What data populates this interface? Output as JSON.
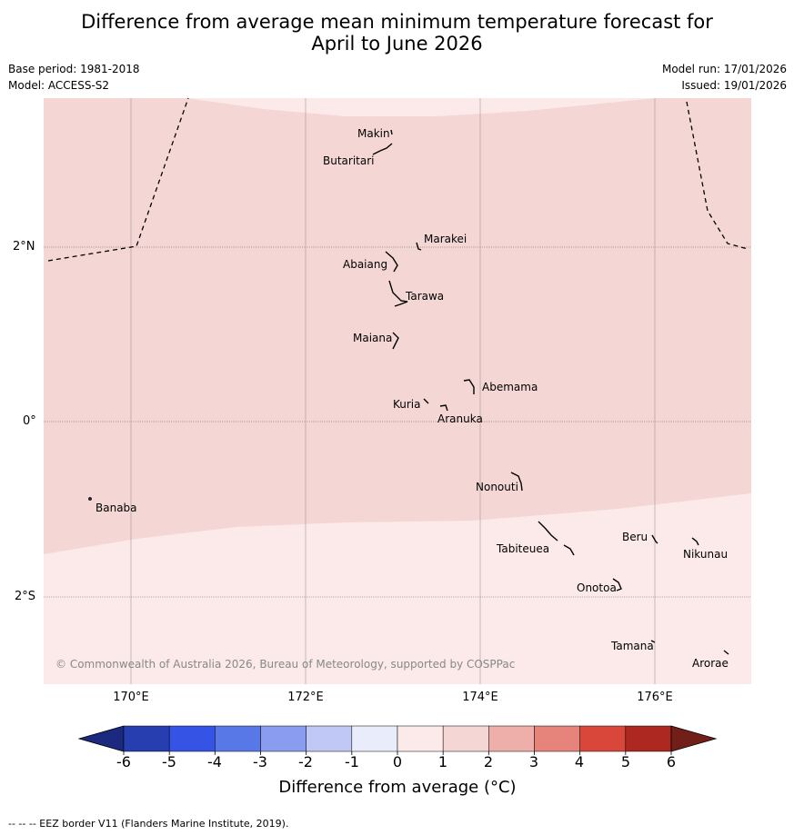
{
  "title_line1": "Difference from average mean minimum temperature forecast for",
  "title_line2": "April to June 2026",
  "base_period": "Base period: 1981-2018",
  "model": "Model: ACCESS-S2",
  "model_run": "Model run: 17/01/2026",
  "issued": "Issued: 19/01/2026",
  "latitude_labels": [
    "2°N",
    "0°",
    "2°S"
  ],
  "longitude_labels": [
    "170°E",
    "172°E",
    "174°E",
    "176°E"
  ],
  "map": {
    "lon_range": [
      169,
      177.1
    ],
    "lat_range": [
      -2.95,
      3.75
    ],
    "regions": [
      {
        "category": "1 to 2",
        "color": "#f4d7d5"
      },
      {
        "category": "0 to 1",
        "color": "#fbeae9"
      }
    ]
  },
  "places": [
    {
      "name": "Makin",
      "lon": 173.0,
      "lat": 3.3
    },
    {
      "name": "Butaritari",
      "lon": 172.8,
      "lat": 3.05
    },
    {
      "name": "Marakei",
      "lon": 173.3,
      "lat": 2.0
    },
    {
      "name": "Abaiang",
      "lon": 172.95,
      "lat": 1.85
    },
    {
      "name": "Tarawa",
      "lon": 173.1,
      "lat": 1.4
    },
    {
      "name": "Maiana",
      "lon": 173.0,
      "lat": 0.95
    },
    {
      "name": "Abemama",
      "lon": 173.9,
      "lat": 0.4
    },
    {
      "name": "Kuria",
      "lon": 173.4,
      "lat": 0.2
    },
    {
      "name": "Aranuka",
      "lon": 173.6,
      "lat": 0.15
    },
    {
      "name": "Nonouti",
      "lon": 174.4,
      "lat": -0.65
    },
    {
      "name": "Banaba",
      "lon": 169.55,
      "lat": -0.87
    },
    {
      "name": "Tabiteuea",
      "lon": 174.8,
      "lat": -1.3
    },
    {
      "name": "Beru",
      "lon": 175.95,
      "lat": -1.3
    },
    {
      "name": "Nikunau",
      "lon": 176.45,
      "lat": -1.37
    },
    {
      "name": "Onotoa",
      "lon": 175.55,
      "lat": -1.8
    },
    {
      "name": "Tamana",
      "lon": 175.98,
      "lat": -2.5
    },
    {
      "name": "Arorae",
      "lon": 176.8,
      "lat": -2.65
    }
  ],
  "colorbar": {
    "ticks": [
      "-6",
      "-5",
      "-4",
      "-3",
      "-2",
      "-1",
      "0",
      "1",
      "2",
      "3",
      "4",
      "5",
      "6"
    ],
    "colors": [
      "#263eaf",
      "#3553e5",
      "#5878e8",
      "#8a9cf0",
      "#c0c9f5",
      "#e8ecfb",
      "#fbeae9",
      "#f4d7d5",
      "#eeafab",
      "#e6847c",
      "#d9473a",
      "#ad2820"
    ],
    "under_color": "#1b2a7e",
    "over_color": "#731f19",
    "label": "Difference from average (°C)"
  },
  "copyright": "© Commonwealth of Australia 2026, Bureau of Meteorology, supported by COSPPac",
  "footer": "--  --  -- EEZ border V11 (Flanders Marine Institute, 2019)."
}
